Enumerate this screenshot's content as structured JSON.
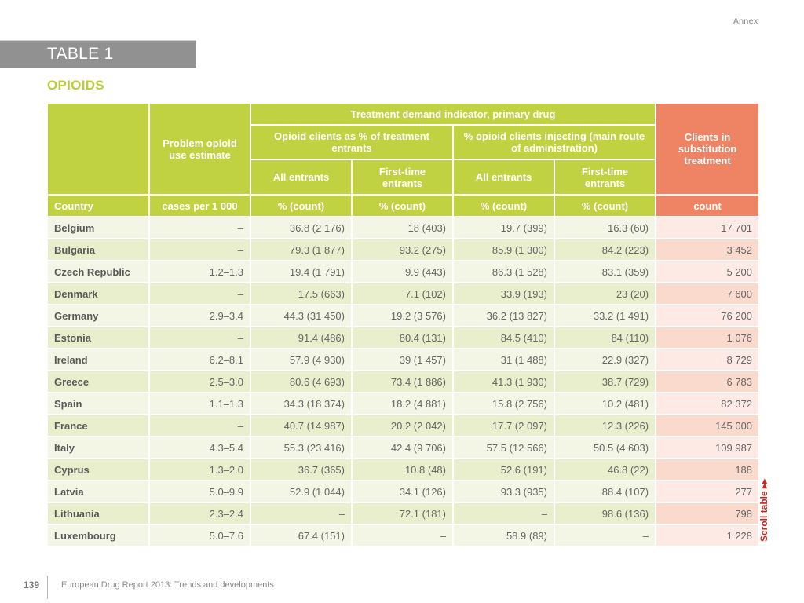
{
  "section_label": "Annex",
  "table_label": "TABLE 1",
  "subtitle": "OPIOIDS",
  "header": {
    "problem_use": "Problem opioid use estimate",
    "tdi_group": "Treatment demand indicator, primary drug",
    "opioid_clients_pct": "Opioid clients as % of treatment entrants",
    "opioid_injecting_pct": "% opioid clients injecting (main route of administration)",
    "substitution": "Clients in substitution treatment",
    "all_entrants_1": "All entrants",
    "first_time_1": "First-time entrants",
    "all_entrants_2": "All entrants",
    "first_time_2": "First-time entrants",
    "units": {
      "country": "Country",
      "problem_use": "cases per 1 000",
      "c1": "% (count)",
      "c2": "% (count)",
      "c3": "% (count)",
      "c4": "% (count)",
      "substitution": "count"
    }
  },
  "rows": [
    {
      "country": "Belgium",
      "problem_use": "–",
      "all_pct": "36.8 (2 176)",
      "first_pct": "18 (403)",
      "all_inj": "19.7 (399)",
      "first_inj": "16.3 (60)",
      "substitution": "17 701"
    },
    {
      "country": "Bulgaria",
      "problem_use": "–",
      "all_pct": "79.3 (1 877)",
      "first_pct": "93.2 (275)",
      "all_inj": "85.9 (1 300)",
      "first_inj": "84.2 (223)",
      "substitution": "3 452"
    },
    {
      "country": "Czech Republic",
      "problem_use": "1.2–1.3",
      "all_pct": "19.4 (1 791)",
      "first_pct": "9.9 (443)",
      "all_inj": "86.3 (1 528)",
      "first_inj": "83.1 (359)",
      "substitution": "5 200"
    },
    {
      "country": "Denmark",
      "problem_use": "–",
      "all_pct": "17.5 (663)",
      "first_pct": "7.1 (102)",
      "all_inj": "33.9 (193)",
      "first_inj": "23 (20)",
      "substitution": "7 600"
    },
    {
      "country": "Germany",
      "problem_use": "2.9–3.4",
      "all_pct": "44.3 (31 450)",
      "first_pct": "19.2 (3 576)",
      "all_inj": "36.2 (13 827)",
      "first_inj": "33.2 (1 491)",
      "substitution": "76 200"
    },
    {
      "country": "Estonia",
      "problem_use": "–",
      "all_pct": "91.4 (486)",
      "first_pct": "80.4 (131)",
      "all_inj": "84.5 (410)",
      "first_inj": "84 (110)",
      "substitution": "1 076"
    },
    {
      "country": "Ireland",
      "problem_use": "6.2–8.1",
      "all_pct": "57.9 (4 930)",
      "first_pct": "39 (1 457)",
      "all_inj": "31 (1 488)",
      "first_inj": "22.9 (327)",
      "substitution": "8 729"
    },
    {
      "country": "Greece",
      "problem_use": "2.5–3.0",
      "all_pct": "80.6 (4 693)",
      "first_pct": "73.4 (1 886)",
      "all_inj": "41.3 (1 930)",
      "first_inj": "38.7 (729)",
      "substitution": "6 783"
    },
    {
      "country": "Spain",
      "problem_use": "1.1–1.3",
      "all_pct": "34.3 (18 374)",
      "first_pct": "18.2 (4 881)",
      "all_inj": "15.8 (2 756)",
      "first_inj": "10.2 (481)",
      "substitution": "82 372"
    },
    {
      "country": "France",
      "problem_use": "–",
      "all_pct": "40.7 (14 987)",
      "first_pct": "20.2 (2 042)",
      "all_inj": "17.7 (2 097)",
      "first_inj": "12.3 (226)",
      "substitution": "145 000"
    },
    {
      "country": "Italy",
      "problem_use": "4.3–5.4",
      "all_pct": "55.3 (23 416)",
      "first_pct": "42.4 (9 706)",
      "all_inj": "57.5 (12 566)",
      "first_inj": "50.5 (4 603)",
      "substitution": "109 987"
    },
    {
      "country": "Cyprus",
      "problem_use": "1.3–2.0",
      "all_pct": "36.7 (365)",
      "first_pct": "10.8 (48)",
      "all_inj": "52.6 (191)",
      "first_inj": "46.8 (22)",
      "substitution": "188"
    },
    {
      "country": "Latvia",
      "problem_use": "5.0–9.9",
      "all_pct": "52.9 (1 044)",
      "first_pct": "34.1 (126)",
      "all_inj": "93.3 (935)",
      "first_inj": "88.4 (107)",
      "substitution": "277"
    },
    {
      "country": "Lithuania",
      "problem_use": "2.3–2.4",
      "all_pct": "–",
      "first_pct": "72.1 (181)",
      "all_inj": "–",
      "first_inj": "98.6 (136)",
      "substitution": "798"
    },
    {
      "country": "Luxembourg",
      "problem_use": "5.0–7.6",
      "all_pct": "67.4 (151)",
      "first_pct": "–",
      "all_inj": "58.9 (89)",
      "first_inj": "–",
      "substitution": "1 228"
    }
  ],
  "scroll_hint": "Scroll table ▸▸",
  "footer": {
    "page_number": "139",
    "publication": "European Drug Report 2013: Trends and developments"
  },
  "colors": {
    "accent_green": "#c0d142",
    "accent_orange": "#ee8463",
    "scroll_red": "#c8281e"
  }
}
